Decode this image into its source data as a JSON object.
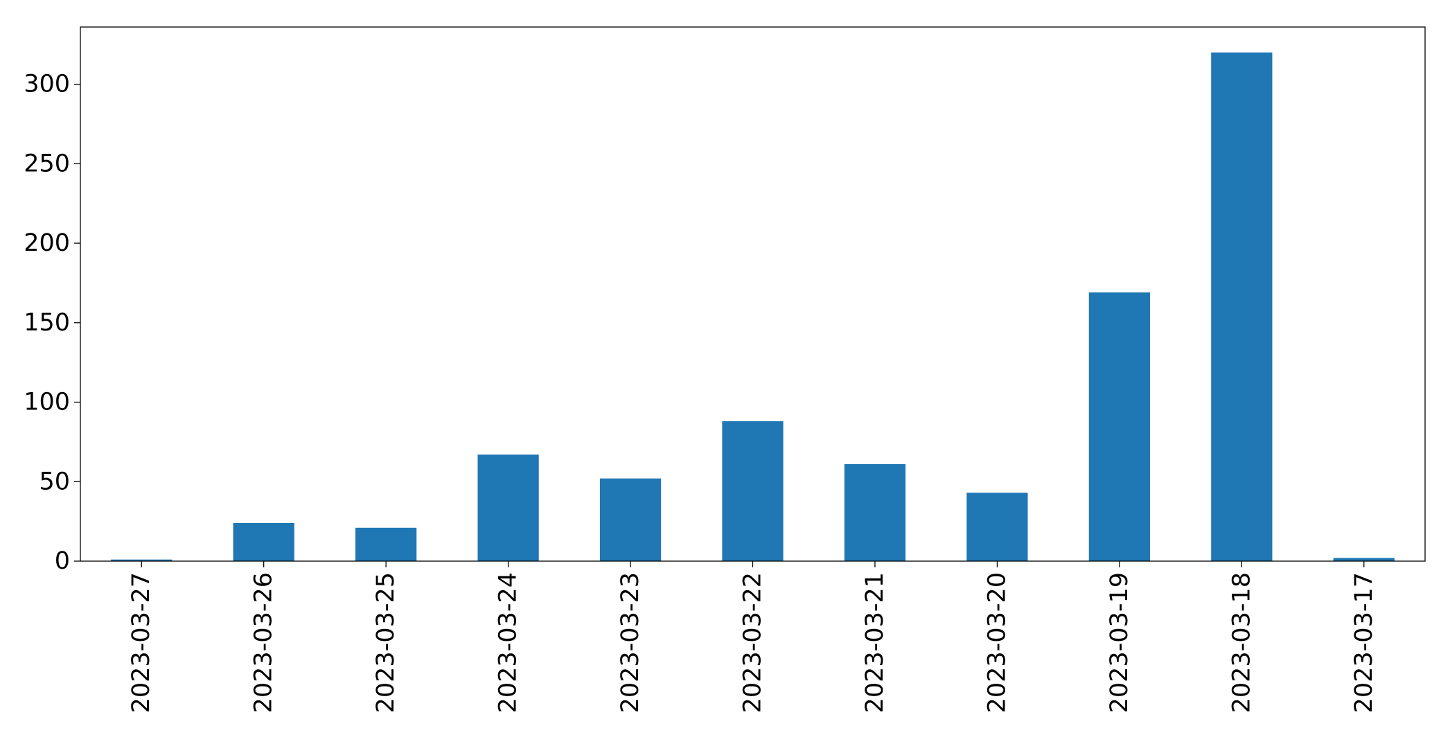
{
  "chart_data": {
    "type": "bar",
    "title": "",
    "xlabel": "",
    "ylabel": "",
    "categories": [
      "2023-03-27",
      "2023-03-26",
      "2023-03-25",
      "2023-03-24",
      "2023-03-23",
      "2023-03-22",
      "2023-03-21",
      "2023-03-20",
      "2023-03-19",
      "2023-03-18",
      "2023-03-17"
    ],
    "values": [
      1,
      24,
      21,
      67,
      52,
      88,
      61,
      43,
      169,
      320,
      2
    ],
    "ylim": [
      0,
      336
    ],
    "yticks": [
      0,
      50,
      100,
      150,
      200,
      250,
      300
    ],
    "grid": false,
    "legend": "none",
    "bar_color": "#1f77b4"
  }
}
